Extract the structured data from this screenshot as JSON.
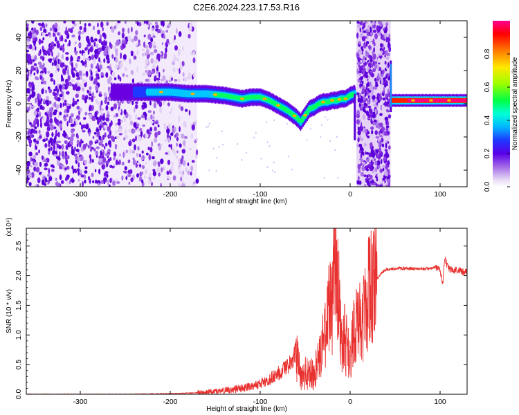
{
  "title": "C2E6.2024.223.17.53.R16",
  "chart_data": [
    {
      "type": "heatmap",
      "title": "C2E6.2024.223.17.53.R16",
      "xlabel": "Height of straight line (km)",
      "ylabel": "Frequency (Hz)",
      "xlim": [
        -360,
        130
      ],
      "ylim": [
        -50,
        50
      ],
      "xticks": [
        -300,
        -200,
        -100,
        0,
        100
      ],
      "yticks": [
        -40,
        -20,
        0,
        20,
        40
      ],
      "colorbar": {
        "label": "Normalized spectral amplitude",
        "range": [
          0.0,
          1.0
        ],
        "ticks": [
          0.0,
          0.2,
          0.4,
          0.6,
          0.8
        ],
        "colors": [
          "#ffffff",
          "#dcc6f2",
          "#b68ae6",
          "#8a3ee0",
          "#6a00e0",
          "#2020ff",
          "#00b4ff",
          "#00ffe0",
          "#00ff40",
          "#80ff00",
          "#ffe000",
          "#ff8000",
          "#ff0000",
          "#ff0080"
        ]
      },
      "ridge": {
        "description": "dominant frequency track (Hz) vs height (km)",
        "x": [
          -260,
          -230,
          -200,
          -180,
          -160,
          -140,
          -130,
          -120,
          -110,
          -100,
          -90,
          -80,
          -70,
          -60,
          -55,
          -50,
          -45,
          -40,
          -35,
          -30,
          -25,
          -20,
          -15,
          -10,
          -5,
          0,
          5,
          45,
          50,
          60,
          70,
          80,
          90,
          100,
          110,
          120,
          130
        ],
        "y": [
          7,
          7,
          7,
          6,
          6,
          5,
          4,
          3,
          4,
          4,
          2,
          -1,
          -4,
          -8,
          -11,
          -7,
          -3,
          -2,
          0,
          1,
          1,
          2,
          2,
          3,
          3,
          5,
          6,
          2,
          2,
          2,
          2,
          2,
          2,
          2,
          2,
          2,
          2
        ]
      },
      "noise_bands": [
        {
          "x_range": [
            -360,
            -170
          ],
          "y_range": [
            -50,
            50
          ],
          "level": "low"
        },
        {
          "x_range": [
            7,
            45
          ],
          "y_range": [
            -50,
            50
          ],
          "level": "medium"
        }
      ]
    },
    {
      "type": "line",
      "xlabel": "Height of straight line (km)",
      "ylabel": "SNR (10 * v/v)",
      "y_multiplier": "(x10⁴)",
      "xlim": [
        -360,
        130
      ],
      "ylim": [
        0.0,
        2.8
      ],
      "xticks": [
        -300,
        -200,
        -100,
        0,
        100
      ],
      "yticks": [
        0.0,
        0.5,
        1.0,
        1.5,
        2.0,
        2.5
      ],
      "series": [
        {
          "color": "#e8312f",
          "x": [
            -360,
            -300,
            -250,
            -200,
            -160,
            -130,
            -110,
            -100,
            -90,
            -80,
            -70,
            -65,
            -60,
            -55,
            -50,
            -45,
            -40,
            -35,
            -30,
            -25,
            -20,
            -16,
            -15,
            -12,
            -10,
            -5,
            0,
            5,
            10,
            15,
            20,
            25,
            30,
            35,
            40,
            50,
            60,
            70,
            80,
            90,
            95,
            100,
            103,
            105,
            107,
            110,
            115,
            120,
            125,
            130
          ],
          "y": [
            0.0,
            0.0,
            0.0,
            0.01,
            0.03,
            0.08,
            0.14,
            0.18,
            0.25,
            0.35,
            0.45,
            0.55,
            0.7,
            0.25,
            0.35,
            0.3,
            0.4,
            0.5,
            0.95,
            1.3,
            1.6,
            2.8,
            2.1,
            1.4,
            1.0,
            0.9,
            0.5,
            1.2,
            1.3,
            1.4,
            1.7,
            1.85,
            1.95,
            2.05,
            2.1,
            2.12,
            2.12,
            2.12,
            2.12,
            2.12,
            2.15,
            2.1,
            1.85,
            2.3,
            2.2,
            2.12,
            2.08,
            2.1,
            2.07,
            2.05
          ]
        }
      ]
    }
  ]
}
